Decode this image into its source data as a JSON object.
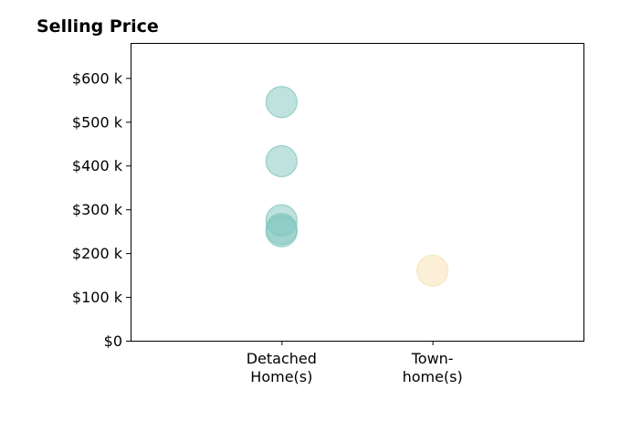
{
  "chart_data": {
    "type": "scatter",
    "title": "Selling Price",
    "xlabel": "",
    "ylabel": "",
    "categories": [
      [
        "Detached",
        "Home(s)"
      ],
      [
        "Town-",
        "home(s)"
      ]
    ],
    "x_range": [
      -1,
      2
    ],
    "ylim": [
      0,
      680000
    ],
    "y_ticks": [
      0,
      100000,
      200000,
      300000,
      400000,
      500000,
      600000
    ],
    "y_tick_labels": [
      "$0",
      "$100 k",
      "$200 k",
      "$300 k",
      "$400 k",
      "$500 k",
      "$600 k"
    ],
    "grid": false,
    "series": [
      {
        "category": 0,
        "color": "#7fc6bd",
        "values": [
          545000,
          410000,
          275000,
          255000,
          250000
        ]
      },
      {
        "category": 1,
        "color": "#f7e0b0",
        "values": [
          160000
        ]
      }
    ]
  }
}
